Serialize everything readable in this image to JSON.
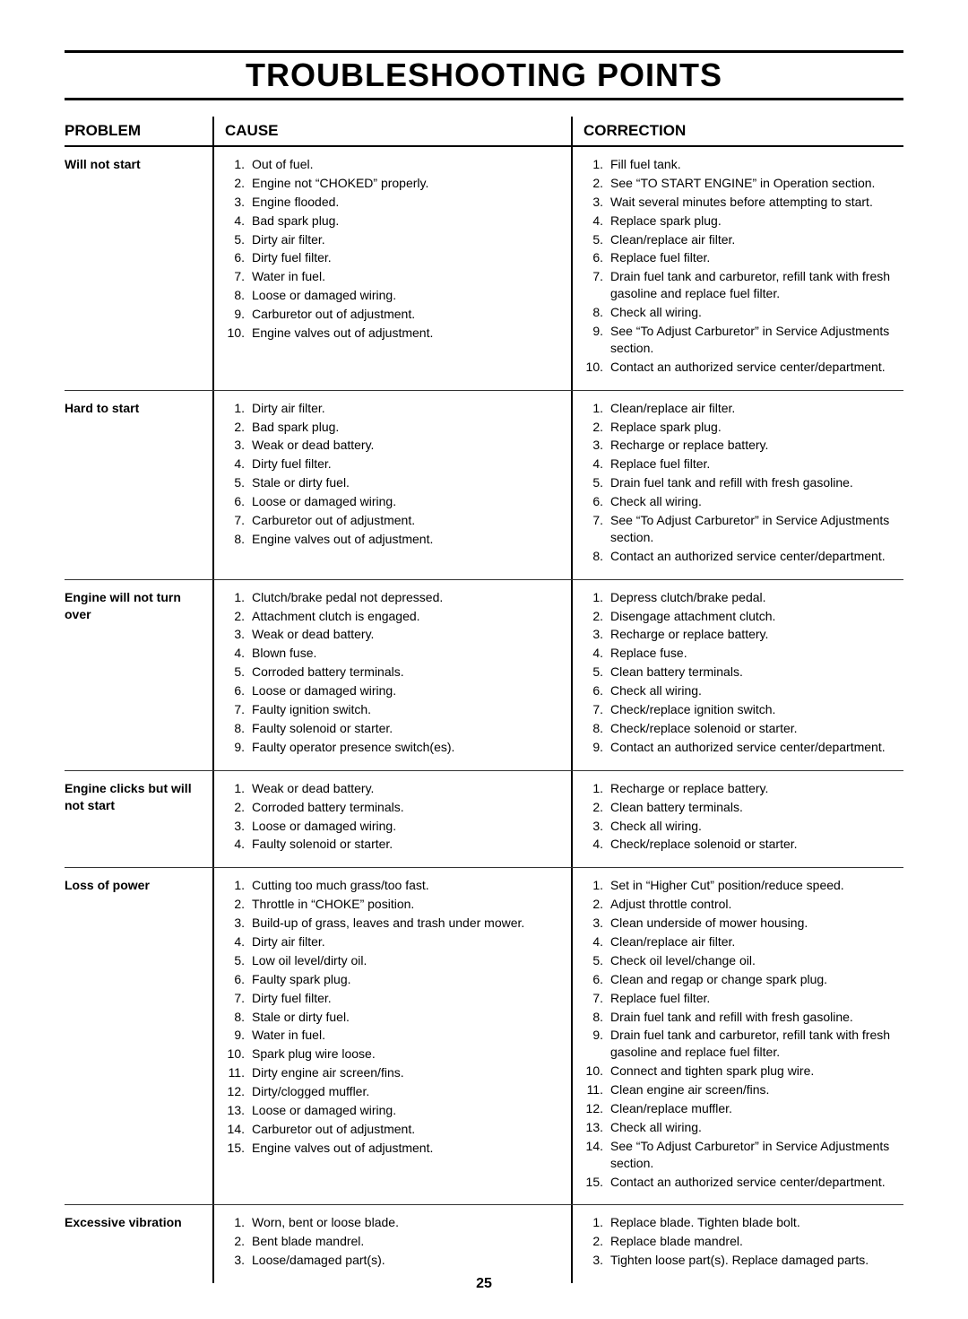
{
  "page_number": "25",
  "title": "TROUBLESHOOTING POINTS",
  "headers": {
    "problem": "PROBLEM",
    "cause": "CAUSE",
    "correction": "CORRECTION"
  },
  "rows": [
    {
      "problem": "Will not start",
      "causes": [
        "Out of fuel.",
        "Engine not “CHOKED” properly.",
        "Engine flooded.",
        "Bad spark plug.",
        "Dirty air filter.",
        "Dirty fuel filter.",
        "Water in fuel.",
        "Loose or damaged wiring.",
        "Carburetor out of adjustment.",
        "Engine valves out of adjustment."
      ],
      "corrections": [
        "Fill fuel tank.",
        "See “TO START ENGINE” in Operation section.",
        "Wait several minutes before attempting to start.",
        "Replace spark plug.",
        "Clean/replace air filter.",
        "Replace fuel filter.",
        "Drain fuel tank and carburetor, refill tank with fresh gasoline and replace fuel filter.",
        "Check all wiring.",
        "See “To Adjust Carburetor” in Service Adjustments section.",
        "Contact an authorized service center/department."
      ]
    },
    {
      "problem": "Hard to start",
      "causes": [
        "Dirty air filter.",
        "Bad spark plug.",
        "Weak or dead battery.",
        "Dirty fuel filter.",
        "Stale or dirty fuel.",
        "Loose or damaged wiring.",
        "Carburetor out of adjustment.",
        "Engine valves out of adjustment."
      ],
      "corrections": [
        "Clean/replace air filter.",
        "Replace spark plug.",
        "Recharge or replace battery.",
        "Replace fuel filter.",
        "Drain fuel tank and refill with fresh gasoline.",
        "Check all wiring.",
        "See “To Adjust Carburetor” in Service Adjustments section.",
        "Contact an authorized service center/department."
      ]
    },
    {
      "problem": "Engine will not turn over",
      "causes": [
        "Clutch/brake pedal not depressed.",
        "Attachment clutch is engaged.",
        "Weak or dead battery.",
        "Blown fuse.",
        "Corroded battery terminals.",
        "Loose or damaged wiring.",
        "Faulty ignition switch.",
        "Faulty solenoid or starter.",
        "Faulty operator presence switch(es)."
      ],
      "corrections": [
        "Depress clutch/brake pedal.",
        "Disengage attachment clutch.",
        "Recharge or replace battery.",
        "Replace fuse.",
        "Clean battery terminals.",
        "Check all wiring.",
        "Check/replace ignition switch.",
        "Check/replace solenoid or starter.",
        "Contact an authorized service center/department."
      ]
    },
    {
      "problem": "Engine clicks but will not start",
      "causes": [
        "Weak or dead battery.",
        "Corroded battery terminals.",
        "Loose or damaged wiring.",
        "Faulty solenoid or starter."
      ],
      "corrections": [
        "Recharge or replace battery.",
        "Clean battery terminals.",
        "Check all wiring.",
        "Check/replace solenoid or starter."
      ]
    },
    {
      "problem": "Loss of power",
      "causes": [
        "Cutting too much grass/too fast.",
        "Throttle in “CHOKE” position.",
        "Build-up of grass, leaves and trash under mower.",
        "Dirty air filter.",
        "Low oil level/dirty oil.",
        "Faulty spark plug.",
        "Dirty fuel filter.",
        "Stale or dirty fuel.",
        "Water in fuel.",
        "Spark plug wire loose.",
        "Dirty engine air screen/fins.",
        "Dirty/clogged muffler.",
        "Loose or damaged wiring.",
        "Carburetor out of adjustment.",
        "Engine valves out of adjustment."
      ],
      "corrections": [
        "Set in “Higher Cut” position/reduce speed.",
        "Adjust throttle control.",
        "Clean underside of mower housing.",
        "Clean/replace air filter.",
        "Check oil level/change oil.",
        "Clean and regap or change spark plug.",
        "Replace fuel filter.",
        "Drain fuel tank and refill with fresh gasoline.",
        "Drain fuel tank and carburetor, refill tank with fresh gasoline and replace fuel filter.",
        "Connect and tighten spark plug wire.",
        "Clean engine air screen/fins.",
        "Clean/replace muffler.",
        "Check all wiring.",
        "See “To Adjust Carburetor” in Service Adjustments section.",
        "Contact an authorized service center/department."
      ]
    },
    {
      "problem": "Excessive vibration",
      "causes": [
        "Worn, bent or loose blade.",
        "Bent blade mandrel.",
        "Loose/damaged part(s)."
      ],
      "corrections": [
        "Replace blade.  Tighten blade bolt.",
        "Replace blade mandrel.",
        "Tighten loose part(s).  Replace damaged parts."
      ]
    }
  ]
}
